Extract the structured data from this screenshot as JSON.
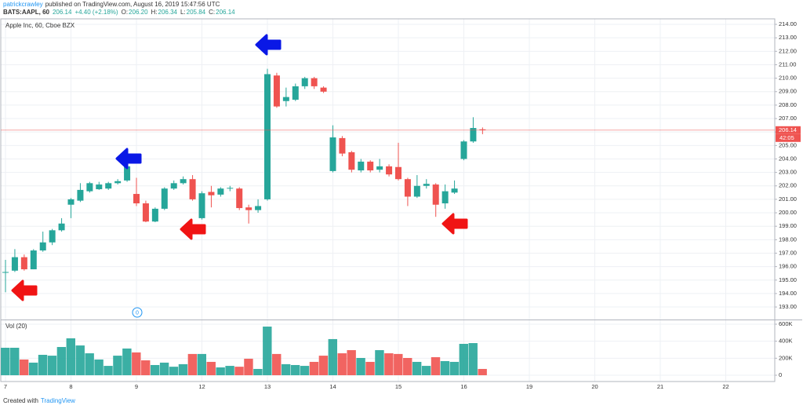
{
  "header": {
    "author": "patrickcrawley",
    "published": "published on TradingView.com, August 16, 2019 15:47:56 UTC",
    "symbol": "BATS:AAPL, 60",
    "last": "206.14",
    "change": "+4.40 (+2.18%)",
    "o_label": "O:",
    "o_value": "206.20",
    "h_label": "H:",
    "h_value": "206.34",
    "l_label": "L:",
    "l_value": "205.84",
    "c_label": "C:",
    "c_value": "206.14"
  },
  "chart_data": {
    "type": "candlestick",
    "title": "Apple Inc, 60, Cboe BZX",
    "volume_title": "Vol (20)",
    "event_label": "0",
    "countdown": "42:05",
    "last_price": {
      "value": 206.14,
      "label": "206.14"
    },
    "categories": [
      "7",
      null,
      null,
      null,
      null,
      null,
      null,
      "8",
      null,
      null,
      null,
      null,
      null,
      null,
      "9",
      null,
      null,
      null,
      null,
      null,
      null,
      "12",
      null,
      null,
      null,
      null,
      null,
      null,
      "13",
      null,
      null,
      null,
      null,
      null,
      null,
      "14",
      null,
      null,
      null,
      null,
      null,
      null,
      "15",
      null,
      null,
      null,
      null,
      null,
      null,
      "16",
      null,
      null,
      null,
      null,
      null,
      null,
      "19",
      null,
      null,
      null,
      null,
      null,
      null,
      "20",
      null,
      null,
      null,
      null,
      null,
      null,
      "21",
      null,
      null,
      null,
      null,
      null,
      null,
      "22",
      null,
      null,
      null,
      null,
      null,
      null
    ],
    "open": [
      195.55,
      195.7,
      196.7,
      195.8,
      197.2,
      197.8,
      198.7,
      200.6,
      200.9,
      201.6,
      201.75,
      201.8,
      202.2,
      202.4,
      201.4,
      200.7,
      199.35,
      200.3,
      201.8,
      202.2,
      202.5,
      199.6,
      201.55,
      201.35,
      201.8,
      201.8,
      200.4,
      200.2,
      201.0,
      210.2,
      208.3,
      208.4,
      209.4,
      210.0,
      209.3,
      203.1,
      205.55,
      204.5,
      203.15,
      203.8,
      203.2,
      203.45,
      203.4,
      202.5,
      201.2,
      202.0,
      202.1,
      200.7,
      201.5,
      204.0,
      205.3,
      206.2,
      null,
      null,
      null,
      null,
      null,
      null,
      null,
      null,
      null,
      null,
      null,
      null,
      null,
      null,
      null,
      null,
      null,
      null,
      null,
      null,
      null,
      null,
      null,
      null,
      null,
      null,
      null,
      null,
      null,
      null,
      null,
      null
    ],
    "high": [
      196.5,
      197.3,
      196.9,
      197.3,
      198.6,
      198.8,
      199.6,
      201.1,
      202.2,
      202.3,
      202.3,
      202.3,
      202.5,
      204.0,
      202.6,
      200.9,
      200.4,
      201.9,
      202.4,
      202.7,
      202.8,
      201.6,
      202.0,
      201.9,
      202.0,
      201.9,
      200.6,
      201.0,
      210.7,
      210.4,
      209.3,
      209.6,
      210.1,
      210.1,
      209.4,
      206.5,
      205.7,
      204.6,
      204.0,
      203.9,
      204.0,
      203.6,
      205.2,
      202.6,
      202.8,
      202.5,
      202.2,
      202.1,
      202.4,
      205.4,
      207.1,
      206.34,
      null,
      null,
      null,
      null,
      null,
      null,
      null,
      null,
      null,
      null,
      null,
      null,
      null,
      null,
      null,
      null,
      null,
      null,
      null,
      null,
      null,
      null,
      null,
      null,
      null,
      null,
      null,
      null,
      null,
      null,
      null,
      null
    ],
    "low": [
      194.1,
      195.6,
      195.7,
      195.8,
      197.1,
      197.6,
      198.6,
      199.6,
      200.8,
      201.5,
      201.7,
      201.7,
      202.1,
      202.3,
      200.5,
      199.3,
      199.3,
      200.2,
      201.7,
      202.1,
      200.9,
      199.5,
      200.4,
      201.2,
      201.6,
      200.2,
      199.2,
      200.0,
      200.9,
      207.8,
      207.9,
      208.3,
      209.2,
      209.2,
      208.9,
      203.0,
      204.2,
      203.0,
      203.0,
      203.0,
      203.0,
      202.7,
      202.4,
      200.5,
      201.1,
      201.8,
      199.7,
      200.3,
      201.4,
      203.9,
      205.2,
      205.84,
      null,
      null,
      null,
      null,
      null,
      null,
      null,
      null,
      null,
      null,
      null,
      null,
      null,
      null,
      null,
      null,
      null,
      null,
      null,
      null,
      null,
      null,
      null,
      null,
      null,
      null,
      null,
      null,
      null,
      null,
      null,
      null
    ],
    "close": [
      195.6,
      196.7,
      195.8,
      197.2,
      197.8,
      198.7,
      199.2,
      201.0,
      201.7,
      202.2,
      202.1,
      202.2,
      202.35,
      203.45,
      200.7,
      199.35,
      200.3,
      201.8,
      202.2,
      202.5,
      201.0,
      201.45,
      201.3,
      201.8,
      201.85,
      200.35,
      200.2,
      200.5,
      210.3,
      207.9,
      208.6,
      209.4,
      210.0,
      209.4,
      209.0,
      205.6,
      204.4,
      203.2,
      203.8,
      203.15,
      203.45,
      202.85,
      202.5,
      201.2,
      202.0,
      202.15,
      200.6,
      201.6,
      201.8,
      205.3,
      206.3,
      206.14,
      null,
      null,
      null,
      null,
      null,
      null,
      null,
      null,
      null,
      null,
      null,
      null,
      null,
      null,
      null,
      null,
      null,
      null,
      null,
      null,
      null,
      null,
      null,
      null,
      null,
      null,
      null,
      null,
      null,
      null,
      null,
      null
    ],
    "volume": [
      323000,
      323000,
      185000,
      148000,
      240000,
      230000,
      332000,
      434000,
      350000,
      258000,
      185000,
      110000,
      230000,
      314000,
      268000,
      175000,
      120000,
      148000,
      100000,
      130000,
      250000,
      250000,
      157000,
      92000,
      110000,
      100000,
      194000,
      74000,
      572000,
      250000,
      130000,
      120000,
      110000,
      157000,
      230000,
      425000,
      258000,
      295000,
      203000,
      157000,
      295000,
      258000,
      250000,
      203000,
      157000,
      110000,
      212000,
      166000,
      157000,
      369000,
      378000,
      74000,
      null,
      null,
      null,
      null,
      null,
      null,
      null,
      null,
      null,
      null,
      null,
      null,
      null,
      null,
      null,
      null,
      null,
      null,
      null,
      null,
      null,
      null,
      null,
      null,
      null,
      null,
      null,
      null,
      null,
      null,
      null,
      null
    ],
    "up_color": "#26a69a",
    "down_color": "#ef5350",
    "last_color": "#ef5350",
    "ylim": [
      192.07,
      214.41
    ],
    "yticks": [
      {
        "value": 193,
        "label": "193.00"
      },
      {
        "value": 194,
        "label": "194.00"
      },
      {
        "value": 195,
        "label": "195.00"
      },
      {
        "value": 196,
        "label": "196.00"
      },
      {
        "value": 197,
        "label": "197.00"
      },
      {
        "value": 198,
        "label": "198.00"
      },
      {
        "value": 199,
        "label": "199.00"
      },
      {
        "value": 200,
        "label": "200.00"
      },
      {
        "value": 201,
        "label": "201.00"
      },
      {
        "value": 202,
        "label": "202.00"
      },
      {
        "value": 203,
        "label": "203.00"
      },
      {
        "value": 204,
        "label": "204.00"
      },
      {
        "value": 205,
        "label": "205.00"
      },
      {
        "value": 206,
        "label": "206.00"
      },
      {
        "value": 207,
        "label": "207.00"
      },
      {
        "value": 208,
        "label": "208.00"
      },
      {
        "value": 209,
        "label": "209.00"
      },
      {
        "value": 210,
        "label": "210.00"
      },
      {
        "value": 211,
        "label": "211.00"
      },
      {
        "value": 212,
        "label": "212.00"
      },
      {
        "value": 213,
        "label": "213.00"
      },
      {
        "value": 214,
        "label": "214.00"
      }
    ],
    "volume_lim": [
      -74000,
      646000
    ],
    "volume_ticks": [
      0,
      {
        "value": 200000,
        "label": "200K"
      },
      {
        "value": 400000,
        "label": "400K"
      },
      {
        "value": 600000,
        "label": "600K"
      }
    ],
    "grid": true
  },
  "footer": {
    "prefix": "Created with",
    "brand": "TradingView"
  }
}
